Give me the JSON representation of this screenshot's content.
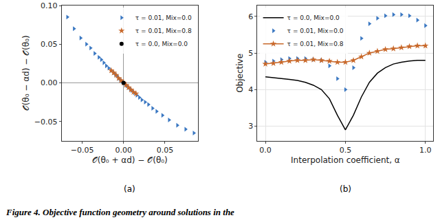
{
  "chart_data": [
    {
      "type": "scatter",
      "panel_label": "(a)",
      "x_label": "𝒪(θ₀ + αd) − 𝒪(θ₀)",
      "y_label": "𝒪(θ₀ − αd) − 𝒪(θ₀)",
      "xlim": [
        -0.075,
        0.09
      ],
      "ylim": [
        -0.075,
        0.1
      ],
      "xticks": [
        {
          "value": -0.05,
          "label": "−0.05"
        },
        {
          "value": 0,
          "label": "0.00"
        },
        {
          "value": 0.05,
          "label": "0.05"
        }
      ],
      "yticks": [
        {
          "value": -0.05,
          "label": "−0.05"
        },
        {
          "value": 0,
          "label": "0.00"
        },
        {
          "value": 0.05,
          "label": "0.05"
        },
        {
          "value": 0.1,
          "label": "0.10"
        }
      ],
      "grid": false,
      "legend": "upper right",
      "series": [
        {
          "name": "τ = 0.01, Mix=0.0",
          "color": "#3b78c2",
          "marker": "triangle-right",
          "type": "scatter",
          "x": [
            -0.068,
            -0.06,
            -0.052,
            -0.045,
            -0.04,
            -0.035,
            -0.03,
            -0.027,
            -0.024,
            -0.021,
            -0.018,
            -0.015,
            -0.012,
            -0.01,
            -0.008,
            -0.006,
            -0.004,
            -0.002,
            0.0,
            0.002,
            0.004,
            0.006,
            0.008,
            0.01,
            0.013,
            0.016,
            0.019,
            0.022,
            0.026,
            0.03,
            0.035,
            0.04,
            0.047,
            0.055,
            0.065,
            0.075,
            0.085
          ],
          "values": [
            0.085,
            0.07,
            0.058,
            0.05,
            0.045,
            0.038,
            0.033,
            0.03,
            0.026,
            0.022,
            0.019,
            0.016,
            0.013,
            0.011,
            0.009,
            0.006,
            0.004,
            0.002,
            0.0,
            -0.002,
            -0.004,
            -0.006,
            -0.008,
            -0.01,
            -0.013,
            -0.016,
            -0.019,
            -0.022,
            -0.025,
            -0.028,
            -0.033,
            -0.037,
            -0.042,
            -0.048,
            -0.055,
            -0.06,
            -0.065
          ]
        },
        {
          "name": "τ = 0.01, Mix=0.8",
          "color": "#c8682a",
          "marker": "star",
          "type": "scatter",
          "x": [
            -0.015,
            -0.012,
            -0.009,
            -0.006,
            -0.003,
            0.0,
            0.003,
            0.006,
            0.009,
            0.012,
            0.015
          ],
          "values": [
            0.016,
            0.013,
            0.01,
            0.006,
            0.003,
            0.0,
            -0.003,
            -0.006,
            -0.009,
            -0.012,
            -0.014
          ]
        },
        {
          "name": "τ = 0.0, Mix=0.0",
          "color": "#000000",
          "marker": "circle",
          "type": "scatter",
          "x": [
            0.0
          ],
          "values": [
            0.0
          ]
        }
      ]
    },
    {
      "type": "line",
      "panel_label": "(b)",
      "x_label": "Interpolation coefficient, α",
      "y_label": "Objective",
      "xlim": [
        -0.05,
        1.05
      ],
      "ylim": [
        2.6,
        6.3
      ],
      "xticks": [
        {
          "value": 0,
          "label": "0.0"
        },
        {
          "value": 0.5,
          "label": "0.5"
        },
        {
          "value": 1,
          "label": "1.0"
        }
      ],
      "yticks": [
        3,
        4,
        5,
        6
      ],
      "grid": true,
      "legend": "upper left",
      "series": [
        {
          "name": "τ = 0.0, Mix=0.0",
          "color": "#000000",
          "type": "line",
          "x": [
            0,
            0.05,
            0.1,
            0.15,
            0.2,
            0.25,
            0.3,
            0.35,
            0.4,
            0.45,
            0.5,
            0.55,
            0.6,
            0.65,
            0.7,
            0.75,
            0.8,
            0.85,
            0.9,
            0.95,
            1.0
          ],
          "values": [
            4.35,
            4.33,
            4.3,
            4.28,
            4.25,
            4.2,
            4.12,
            4.0,
            3.75,
            3.3,
            2.9,
            3.3,
            3.8,
            4.2,
            4.45,
            4.6,
            4.7,
            4.75,
            4.78,
            4.8,
            4.8
          ]
        },
        {
          "name": "τ = 0.01, Mix=0.0",
          "color": "#3b78c2",
          "marker": "triangle-right",
          "type": "scatter",
          "x": [
            0,
            0.05,
            0.1,
            0.15,
            0.2,
            0.25,
            0.3,
            0.35,
            0.4,
            0.45,
            0.5,
            0.55,
            0.6,
            0.65,
            0.7,
            0.75,
            0.8,
            0.85,
            0.9,
            0.95,
            1.0
          ],
          "values": [
            4.75,
            4.78,
            4.82,
            4.85,
            4.85,
            4.85,
            4.82,
            4.8,
            4.65,
            4.3,
            4.0,
            4.6,
            5.4,
            5.8,
            5.95,
            6.02,
            6.05,
            6.05,
            6.02,
            5.9,
            5.75
          ]
        },
        {
          "name": "τ = 0.01, Mix=0.8",
          "color": "#c8682a",
          "marker": "star",
          "type": "line",
          "x": [
            0,
            0.05,
            0.1,
            0.15,
            0.2,
            0.25,
            0.3,
            0.35,
            0.4,
            0.45,
            0.5,
            0.55,
            0.6,
            0.65,
            0.7,
            0.75,
            0.8,
            0.85,
            0.9,
            0.95,
            1.0
          ],
          "values": [
            4.7,
            4.72,
            4.75,
            4.78,
            4.8,
            4.8,
            4.82,
            4.8,
            4.78,
            4.75,
            4.75,
            4.8,
            4.9,
            5.0,
            5.05,
            5.1,
            5.12,
            5.15,
            5.18,
            5.2,
            5.2
          ]
        }
      ]
    }
  ],
  "caption": "Figure 4. Objective function geometry around solutions in the"
}
